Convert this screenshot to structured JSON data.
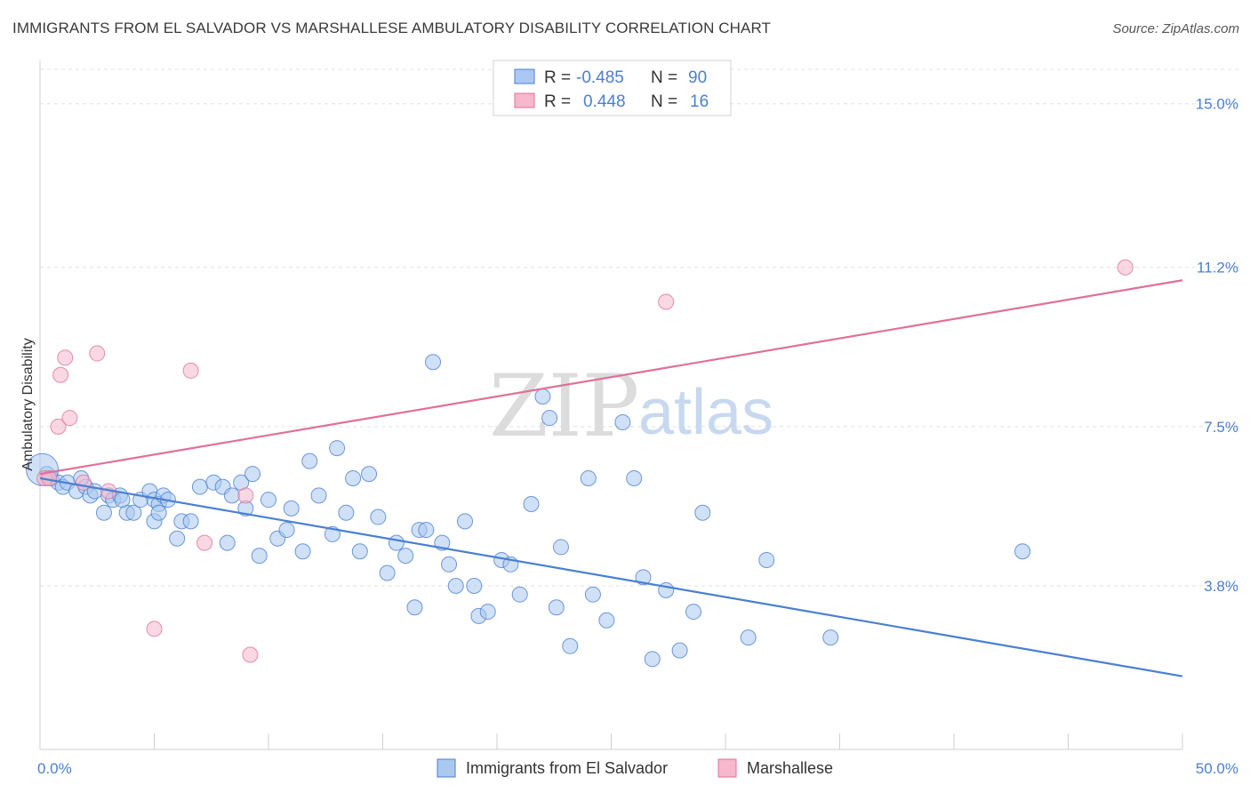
{
  "title": "IMMIGRANTS FROM EL SALVADOR VS MARSHALLESE AMBULATORY DISABILITY CORRELATION CHART",
  "source": "Source: ZipAtlas.com",
  "watermark": {
    "zip": "ZIP",
    "atlas": "atlas"
  },
  "colors": {
    "blue": "#4a7fd0",
    "blue_fill": "#aac8f0",
    "pink": "#e07098",
    "pink_fill": "#f5b8cc",
    "tick_text": "#4a7fd0"
  },
  "legend": {
    "rows": [
      {
        "r_label": "R =",
        "r_value": "-0.485",
        "n_label": "N =",
        "n_value": "90"
      },
      {
        "r_label": "R =",
        "r_value": "0.448",
        "n_label": "N =",
        "n_value": "16"
      }
    ]
  },
  "chart_data": {
    "type": "scatter",
    "title": "IMMIGRANTS FROM EL SALVADOR VS MARSHALLESE AMBULATORY DISABILITY CORRELATION CHART",
    "xlabel": "",
    "ylabel": "Ambulatory Disability",
    "xlim": [
      0,
      50
    ],
    "ylim": [
      0,
      15.8
    ],
    "x_tick_labels": [
      "0.0%",
      "50.0%"
    ],
    "y_ticks": [
      3.8,
      7.5,
      11.2,
      15.0
    ],
    "y_tick_labels": [
      "3.8%",
      "7.5%",
      "11.2%",
      "15.0%"
    ],
    "grid": true,
    "legend_position": "top-center",
    "series": [
      {
        "name": "Immigrants from El Salvador",
        "color": "#4a7fd0",
        "trend": {
          "x": [
            0,
            50
          ],
          "y": [
            6.3,
            1.7
          ]
        },
        "points": [
          [
            0.3,
            6.4
          ],
          [
            0.5,
            6.3
          ],
          [
            0.8,
            6.2
          ],
          [
            1.0,
            6.1
          ],
          [
            1.2,
            6.2
          ],
          [
            1.6,
            6.0
          ],
          [
            2.0,
            6.1
          ],
          [
            2.2,
            5.9
          ],
          [
            1.8,
            6.3
          ],
          [
            2.4,
            6.0
          ],
          [
            2.8,
            5.5
          ],
          [
            3.0,
            5.9
          ],
          [
            3.2,
            5.8
          ],
          [
            3.5,
            5.9
          ],
          [
            3.8,
            5.5
          ],
          [
            4.1,
            5.5
          ],
          [
            3.6,
            5.8
          ],
          [
            4.4,
            5.8
          ],
          [
            4.8,
            6.0
          ],
          [
            5.0,
            5.8
          ],
          [
            5.2,
            5.7
          ],
          [
            5.4,
            5.9
          ],
          [
            5.6,
            5.8
          ],
          [
            5.0,
            5.3
          ],
          [
            5.2,
            5.5
          ],
          [
            6.0,
            4.9
          ],
          [
            6.2,
            5.3
          ],
          [
            6.6,
            5.3
          ],
          [
            7.0,
            6.1
          ],
          [
            7.6,
            6.2
          ],
          [
            8.0,
            6.1
          ],
          [
            8.2,
            4.8
          ],
          [
            8.4,
            5.9
          ],
          [
            8.8,
            6.2
          ],
          [
            9.0,
            5.6
          ],
          [
            9.3,
            6.4
          ],
          [
            9.6,
            4.5
          ],
          [
            10.0,
            5.8
          ],
          [
            10.4,
            4.9
          ],
          [
            10.8,
            5.1
          ],
          [
            11.0,
            5.6
          ],
          [
            11.5,
            4.6
          ],
          [
            11.8,
            6.7
          ],
          [
            12.2,
            5.9
          ],
          [
            12.8,
            5.0
          ],
          [
            13.0,
            7.0
          ],
          [
            13.4,
            5.5
          ],
          [
            13.7,
            6.3
          ],
          [
            14.0,
            4.6
          ],
          [
            14.4,
            6.4
          ],
          [
            14.8,
            5.4
          ],
          [
            15.2,
            4.1
          ],
          [
            15.6,
            4.8
          ],
          [
            16.0,
            4.5
          ],
          [
            16.4,
            3.3
          ],
          [
            16.6,
            5.1
          ],
          [
            16.9,
            5.1
          ],
          [
            17.2,
            9.0
          ],
          [
            17.6,
            4.8
          ],
          [
            17.9,
            4.3
          ],
          [
            18.2,
            3.8
          ],
          [
            18.6,
            5.3
          ],
          [
            19.0,
            3.8
          ],
          [
            19.2,
            3.1
          ],
          [
            19.6,
            3.2
          ],
          [
            20.2,
            4.4
          ],
          [
            20.6,
            4.3
          ],
          [
            21.0,
            3.6
          ],
          [
            21.5,
            5.7
          ],
          [
            22.0,
            8.2
          ],
          [
            22.3,
            7.7
          ],
          [
            22.6,
            3.3
          ],
          [
            22.8,
            4.7
          ],
          [
            23.2,
            2.4
          ],
          [
            24.0,
            6.3
          ],
          [
            24.2,
            3.6
          ],
          [
            24.8,
            3.0
          ],
          [
            25.5,
            7.6
          ],
          [
            26.0,
            6.3
          ],
          [
            26.4,
            4.0
          ],
          [
            26.8,
            2.1
          ],
          [
            27.4,
            3.7
          ],
          [
            28.0,
            2.3
          ],
          [
            28.6,
            3.2
          ],
          [
            29.0,
            5.5
          ],
          [
            31.0,
            2.6
          ],
          [
            31.8,
            4.4
          ],
          [
            34.6,
            2.6
          ],
          [
            43.0,
            4.6
          ],
          [
            0.1,
            6.5
          ]
        ]
      },
      {
        "name": "Marshallese",
        "color": "#e07098",
        "trend": {
          "x": [
            0,
            50
          ],
          "y": [
            6.4,
            10.9
          ]
        },
        "points": [
          [
            0.2,
            6.3
          ],
          [
            0.4,
            6.3
          ],
          [
            0.8,
            7.5
          ],
          [
            0.9,
            8.7
          ],
          [
            1.1,
            9.1
          ],
          [
            1.3,
            7.7
          ],
          [
            1.9,
            6.2
          ],
          [
            2.5,
            9.2
          ],
          [
            3.0,
            6.0
          ],
          [
            5.0,
            2.8
          ],
          [
            6.6,
            8.8
          ],
          [
            7.2,
            4.8
          ],
          [
            9.0,
            5.9
          ],
          [
            9.2,
            2.2
          ],
          [
            27.4,
            10.4
          ],
          [
            47.5,
            11.2
          ]
        ]
      }
    ]
  },
  "bottom_legend": [
    {
      "label": "Immigrants from El Salvador"
    },
    {
      "label": "Marshallese"
    }
  ]
}
